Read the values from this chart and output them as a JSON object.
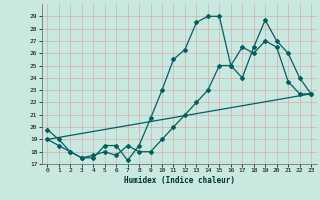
{
  "xlabel": "Humidex (Indice chaleur)",
  "bg_color": "#c8e8e0",
  "grid_color": "#b8d8d0",
  "line_color": "#006060",
  "xlim": [
    -0.5,
    23.5
  ],
  "ylim": [
    17,
    30
  ],
  "yticks": [
    17,
    18,
    19,
    20,
    21,
    22,
    23,
    24,
    25,
    26,
    27,
    28,
    29
  ],
  "xticks": [
    0,
    1,
    2,
    3,
    4,
    5,
    6,
    7,
    8,
    9,
    10,
    11,
    12,
    13,
    14,
    15,
    16,
    17,
    18,
    19,
    20,
    21,
    22,
    23
  ],
  "line1_x": [
    0,
    1,
    2,
    3,
    4,
    5,
    6,
    7,
    8,
    9,
    10,
    11,
    12,
    13,
    14,
    15,
    16,
    17,
    18,
    19,
    20,
    21,
    22,
    23
  ],
  "line1_y": [
    19.8,
    19.0,
    18.0,
    17.5,
    17.5,
    18.5,
    18.5,
    17.3,
    18.5,
    20.7,
    23.0,
    25.5,
    26.3,
    28.5,
    29.0,
    29.0,
    25.0,
    24.0,
    26.5,
    28.7,
    27.0,
    26.0,
    24.0,
    22.7
  ],
  "line2_x": [
    0,
    1,
    2,
    3,
    4,
    5,
    6,
    7,
    8,
    9,
    10,
    11,
    12,
    13,
    14,
    15,
    16,
    17,
    18,
    19,
    20,
    21,
    22,
    23
  ],
  "line2_y": [
    19.0,
    18.5,
    18.0,
    17.5,
    17.7,
    18.0,
    17.7,
    18.5,
    18.0,
    18.0,
    19.0,
    20.0,
    21.0,
    22.0,
    23.0,
    25.0,
    25.0,
    26.5,
    26.0,
    27.0,
    26.5,
    23.7,
    22.7,
    22.7
  ],
  "line3_x": [
    0,
    23
  ],
  "line3_y": [
    19.0,
    22.7
  ]
}
